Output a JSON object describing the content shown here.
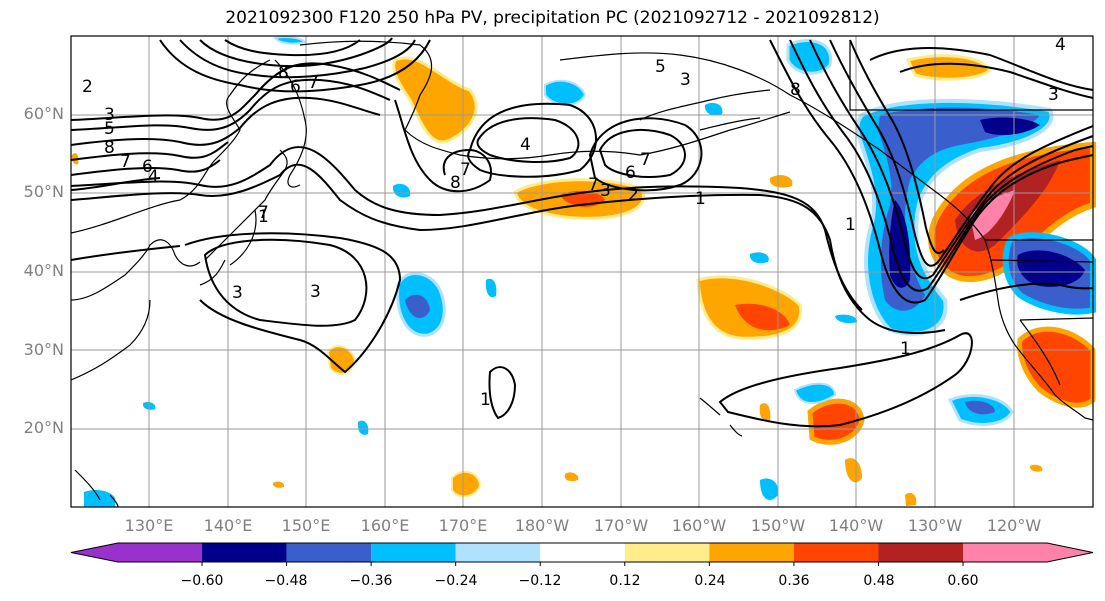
{
  "title": "2021092300 F120 250 hPa PV, precipitation PC (2021092712 - 2021092812)",
  "lat_labels": [
    "60°N",
    "50°N",
    "40°N",
    "30°N",
    "20°N"
  ],
  "lon_labels": [
    "130°E",
    "140°E",
    "150°E",
    "160°E",
    "170°E",
    "180°W",
    "170°W",
    "160°W",
    "150°W",
    "140°W",
    "130°W",
    "120°W"
  ],
  "colorbar": {
    "tick_labels": [
      "−0.60",
      "−0.48",
      "−0.36",
      "−0.24",
      "−0.12",
      "0.12",
      "0.24",
      "0.36",
      "0.48",
      "0.60"
    ],
    "colors": [
      "#9932CC",
      "#00008B",
      "#3A5FCD",
      "#00BFFF",
      "#B0E2FF",
      "#FFFFFF",
      "#FFEC8B",
      "#FFA500",
      "#FF4500",
      "#B22222",
      "#FF82AB"
    ]
  },
  "contour_labels": [
    "8",
    "7",
    "3",
    "5",
    "8",
    "7",
    "6",
    "4",
    "2",
    "7",
    "4",
    "7",
    "8",
    "7",
    "5",
    "3",
    "6",
    "7",
    "6",
    "3",
    "2",
    "1",
    "8",
    "3",
    "1",
    "3",
    "3",
    "1",
    "1",
    "1",
    "4"
  ],
  "map": {
    "extent": {
      "lon_min": 120,
      "lon_max": 250,
      "lat_min": 10,
      "lat_max": 70
    },
    "gridlines": true
  }
}
